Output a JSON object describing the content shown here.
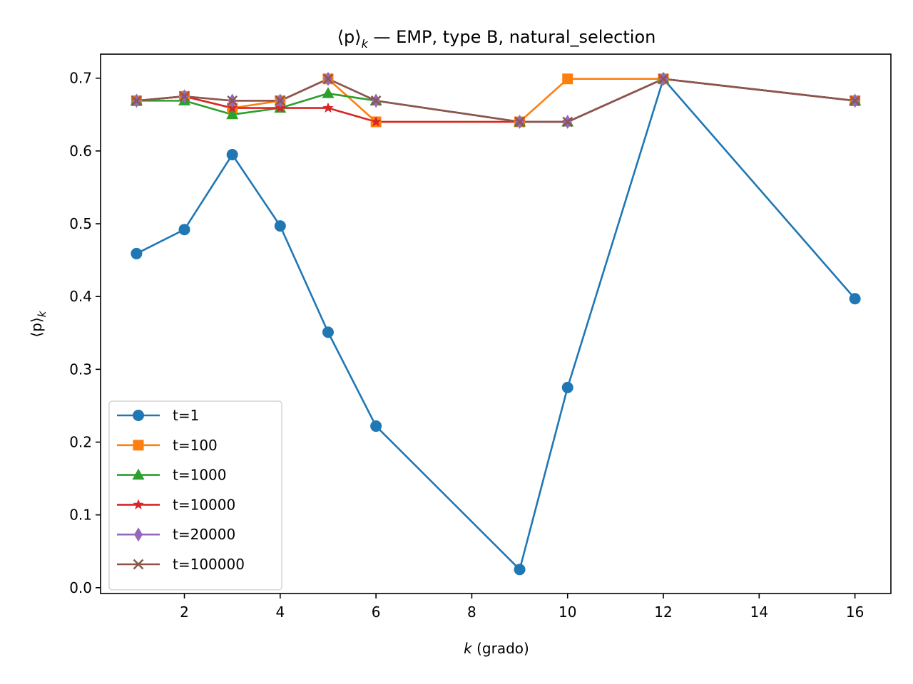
{
  "chart_data": {
    "type": "line",
    "title_main": "⟨p⟩",
    "title_sub": "k",
    "title_rest": " — EMP, type B, natural_selection",
    "xlabel_var": "k",
    "xlabel_rest": " (grado)",
    "ylabel_main": "⟨p⟩",
    "ylabel_sub": "k",
    "xlim": [
      0.25,
      16.75
    ],
    "ylim": [
      -0.008,
      0.733
    ],
    "xticks": [
      2,
      4,
      6,
      8,
      10,
      12,
      14,
      16
    ],
    "yticks": [
      0.0,
      0.1,
      0.2,
      0.3,
      0.4,
      0.5,
      0.6,
      0.7
    ],
    "x": [
      1,
      2,
      3,
      4,
      5,
      6,
      9,
      10,
      12,
      16
    ],
    "grid": false,
    "legend_position": "lower-left",
    "series": [
      {
        "name": "t=1",
        "color": "#1f77b4",
        "marker": "circle",
        "values": [
          0.459,
          0.492,
          0.595,
          0.497,
          0.351,
          0.222,
          0.025,
          0.275,
          0.699,
          0.397
        ]
      },
      {
        "name": "t=100",
        "color": "#ff7f0e",
        "marker": "square",
        "values": [
          0.669,
          0.675,
          0.659,
          0.669,
          0.699,
          0.64,
          0.64,
          0.699,
          0.699,
          0.669
        ]
      },
      {
        "name": "t=1000",
        "color": "#2ca02c",
        "marker": "triangle",
        "values": [
          0.669,
          0.669,
          0.65,
          0.659,
          0.679,
          0.669,
          0.64,
          0.64,
          0.699,
          0.669
        ]
      },
      {
        "name": "t=10000",
        "color": "#d62728",
        "marker": "star",
        "values": [
          0.669,
          0.675,
          0.659,
          0.659,
          0.659,
          0.64,
          0.64,
          0.64,
          0.699,
          0.669
        ]
      },
      {
        "name": "t=20000",
        "color": "#9467bd",
        "marker": "thin_diamond",
        "values": [
          0.669,
          0.675,
          0.669,
          0.669,
          0.699,
          0.669,
          0.64,
          0.64,
          0.699,
          0.669
        ]
      },
      {
        "name": "t=100000",
        "color": "#8c564b",
        "marker": "x",
        "values": [
          0.669,
          0.675,
          0.669,
          0.669,
          0.699,
          0.669,
          0.64,
          0.64,
          0.699,
          0.669
        ]
      }
    ]
  }
}
